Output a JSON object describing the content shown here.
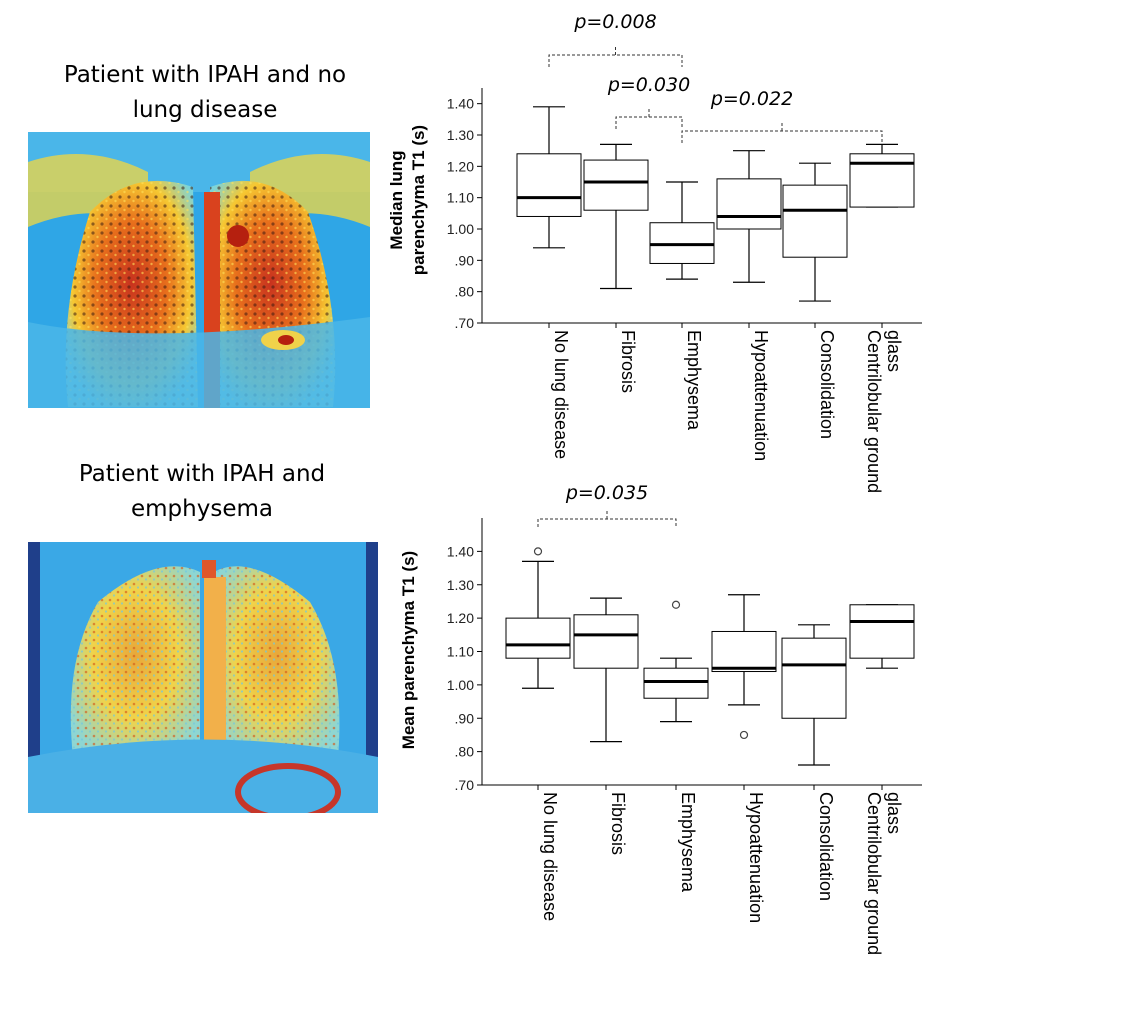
{
  "panels": [
    {
      "caption_line1": "Patient with IPAH and no",
      "caption_line2": "lung disease",
      "image_label": "T1 map – IPAH, no lung disease"
    },
    {
      "caption_line1": "Patient with IPAH and",
      "caption_line2": "emphysema",
      "image_label": "T1 map – IPAH with emphysema"
    }
  ],
  "colors": {
    "box_stroke": "#000000",
    "median": "#000000",
    "axis": "#000000",
    "bracket": "#333333"
  },
  "chart_data": [
    {
      "type": "boxplot",
      "ylabel": [
        "Median lung",
        "parenchyma T1 (s)"
      ],
      "ylim": [
        0.7,
        1.45
      ],
      "yticks": [
        0.7,
        0.8,
        0.9,
        1.0,
        1.1,
        1.2,
        1.3,
        1.4
      ],
      "ytick_labels": [
        ".70",
        ".80",
        ".90",
        "1.00",
        "1.10",
        "1.20",
        "1.30",
        "1.40"
      ],
      "categories": [
        [
          "No lung disease"
        ],
        [
          "Fibrosis"
        ],
        [
          "Emphysema"
        ],
        [
          "Hypoattenuation"
        ],
        [
          "Consolidation"
        ],
        [
          "Centrilobular ground",
          "glass"
        ]
      ],
      "boxes": [
        {
          "min": 0.94,
          "q1": 1.04,
          "median": 1.1,
          "q3": 1.24,
          "max": 1.39,
          "outliers": []
        },
        {
          "min": 0.81,
          "q1": 1.06,
          "median": 1.15,
          "q3": 1.22,
          "max": 1.27,
          "outliers": []
        },
        {
          "min": 0.84,
          "q1": 0.89,
          "median": 0.95,
          "q3": 1.02,
          "max": 1.15,
          "outliers": []
        },
        {
          "min": 0.83,
          "q1": 1.0,
          "median": 1.04,
          "q3": 1.16,
          "max": 1.25,
          "outliers": []
        },
        {
          "min": 0.77,
          "q1": 0.91,
          "median": 1.06,
          "q3": 1.14,
          "max": 1.21,
          "outliers": []
        },
        {
          "min": 1.07,
          "q1": 1.07,
          "median": 1.21,
          "q3": 1.24,
          "max": 1.27,
          "outliers": []
        }
      ],
      "annotations": [
        {
          "text": "p=0.008",
          "from": 0,
          "to": 2,
          "level": 2
        },
        {
          "text": "p=0.030",
          "from": 1,
          "to": 2,
          "level": 1
        },
        {
          "text": "p=0.022",
          "from": 2,
          "to": 5,
          "level": 0
        }
      ]
    },
    {
      "type": "boxplot",
      "ylabel": [
        "Mean parenchyma T1 (s)"
      ],
      "ylim": [
        0.7,
        1.5
      ],
      "yticks": [
        0.7,
        0.8,
        0.9,
        1.0,
        1.1,
        1.2,
        1.3,
        1.4
      ],
      "ytick_labels": [
        ".70",
        ".80",
        ".90",
        "1.00",
        "1.10",
        "1.20",
        "1.30",
        "1.40"
      ],
      "categories": [
        [
          "No lung disease"
        ],
        [
          "Fibrosis"
        ],
        [
          "Emphysema"
        ],
        [
          "Hypoattenuation"
        ],
        [
          "Consolidation"
        ],
        [
          "Centrilobular ground",
          "glass"
        ]
      ],
      "boxes": [
        {
          "min": 0.99,
          "q1": 1.08,
          "median": 1.12,
          "q3": 1.2,
          "max": 1.37,
          "outliers": [
            1.4
          ]
        },
        {
          "min": 0.83,
          "q1": 1.05,
          "median": 1.15,
          "q3": 1.21,
          "max": 1.26,
          "outliers": []
        },
        {
          "min": 0.89,
          "q1": 0.96,
          "median": 1.01,
          "q3": 1.05,
          "max": 1.08,
          "outliers": [
            1.24
          ]
        },
        {
          "min": 0.94,
          "q1": 1.04,
          "median": 1.05,
          "q3": 1.16,
          "max": 1.27,
          "outliers": [
            0.85
          ]
        },
        {
          "min": 0.76,
          "q1": 0.9,
          "median": 1.06,
          "q3": 1.14,
          "max": 1.18,
          "outliers": []
        },
        {
          "min": 1.05,
          "q1": 1.08,
          "median": 1.19,
          "q3": 1.24,
          "max": 1.24,
          "outliers": []
        }
      ],
      "annotations": [
        {
          "text": "p=0.035",
          "from": 0,
          "to": 2,
          "level": 0
        }
      ]
    }
  ]
}
